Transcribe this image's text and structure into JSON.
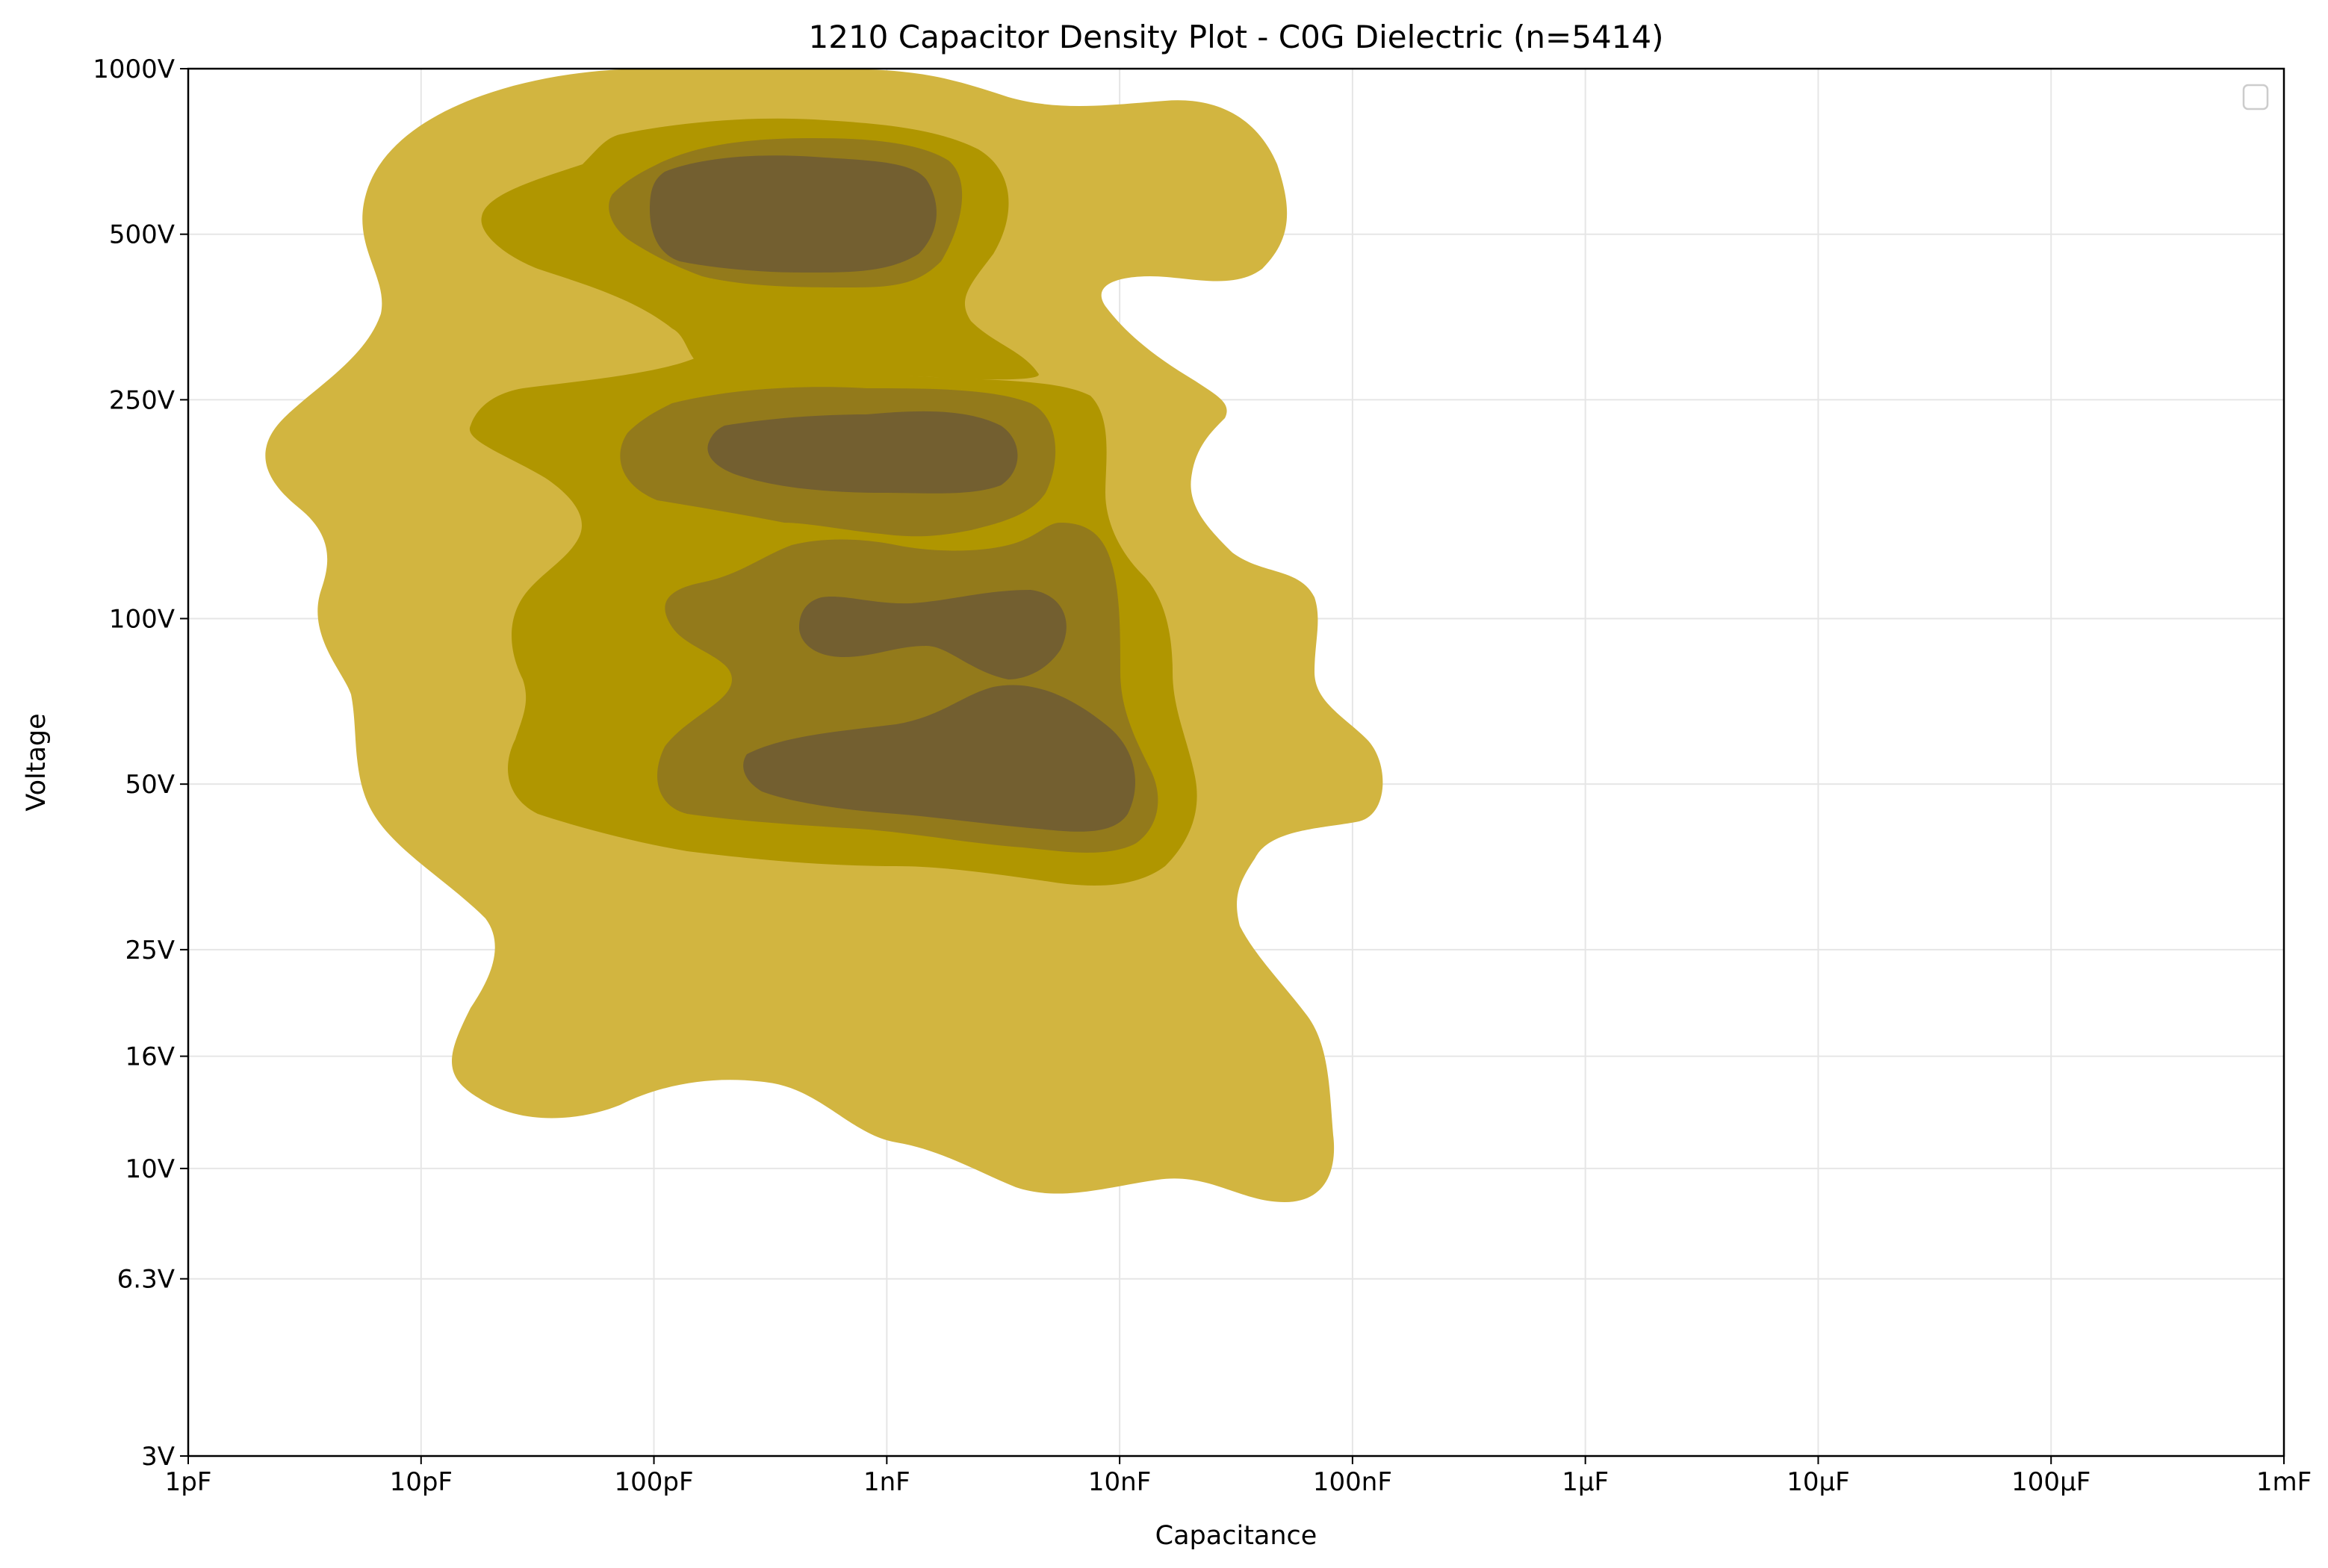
{
  "chart_data": {
    "type": "density",
    "title": "1210 Capacitor Density Plot - C0G Dielectric (n=5414)",
    "xlabel": "Capacitance",
    "ylabel": "Voltage",
    "x_scale": "log",
    "y_scale": "log",
    "xlim_farads": [
      1e-12,
      0.001
    ],
    "ylim_volts": [
      3,
      1000
    ],
    "x_ticks": [
      {
        "label": "1pF",
        "value": 1e-12
      },
      {
        "label": "10pF",
        "value": 1e-11
      },
      {
        "label": "100pF",
        "value": 1e-10
      },
      {
        "label": "1nF",
        "value": 1e-09
      },
      {
        "label": "10nF",
        "value": 1e-08
      },
      {
        "label": "100nF",
        "value": 1e-07
      },
      {
        "label": "1µF",
        "value": 1e-06
      },
      {
        "label": "10µF",
        "value": 1e-05
      },
      {
        "label": "100µF",
        "value": 0.0001
      },
      {
        "label": "1mF",
        "value": 0.001
      }
    ],
    "y_ticks": [
      {
        "label": "3V",
        "value": 3
      },
      {
        "label": "6.3V",
        "value": 6.3
      },
      {
        "label": "10V",
        "value": 10
      },
      {
        "label": "16V",
        "value": 16
      },
      {
        "label": "25V",
        "value": 25
      },
      {
        "label": "50V",
        "value": 50
      },
      {
        "label": "100V",
        "value": 100
      },
      {
        "label": "250V",
        "value": 250
      },
      {
        "label": "500V",
        "value": 500
      },
      {
        "label": "1000V",
        "value": 1000
      }
    ],
    "grid": true,
    "legend": "top-right (empty)",
    "density_levels": [
      {
        "level": 1,
        "color": "#d2b540"
      },
      {
        "level": 2,
        "color": "#b09600"
      },
      {
        "level": 3,
        "color": "#937a1b"
      },
      {
        "level": 4,
        "color": "#735f30"
      }
    ],
    "density_peaks": [
      {
        "capacitance_farads": 4e-10,
        "voltage_volts": 600
      },
      {
        "capacitance_farads": 1e-09,
        "voltage_volts": 200
      },
      {
        "capacitance_farads": 1e-09,
        "voltage_volts": 95
      },
      {
        "capacitance_farads": 2e-09,
        "voltage_volts": 55
      }
    ]
  }
}
